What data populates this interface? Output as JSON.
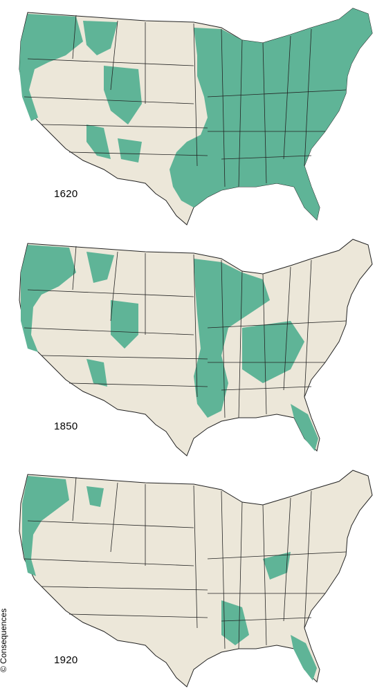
{
  "maps": [
    {
      "year": "1620",
      "forest_coverage": "dense"
    },
    {
      "year": "1850",
      "forest_coverage": "partial"
    },
    {
      "year": "1920",
      "forest_coverage": "sparse"
    }
  ],
  "credit": "© Consequences",
  "colors": {
    "land": "#ece7d9",
    "forest": "#5fb497",
    "border": "#222222"
  }
}
